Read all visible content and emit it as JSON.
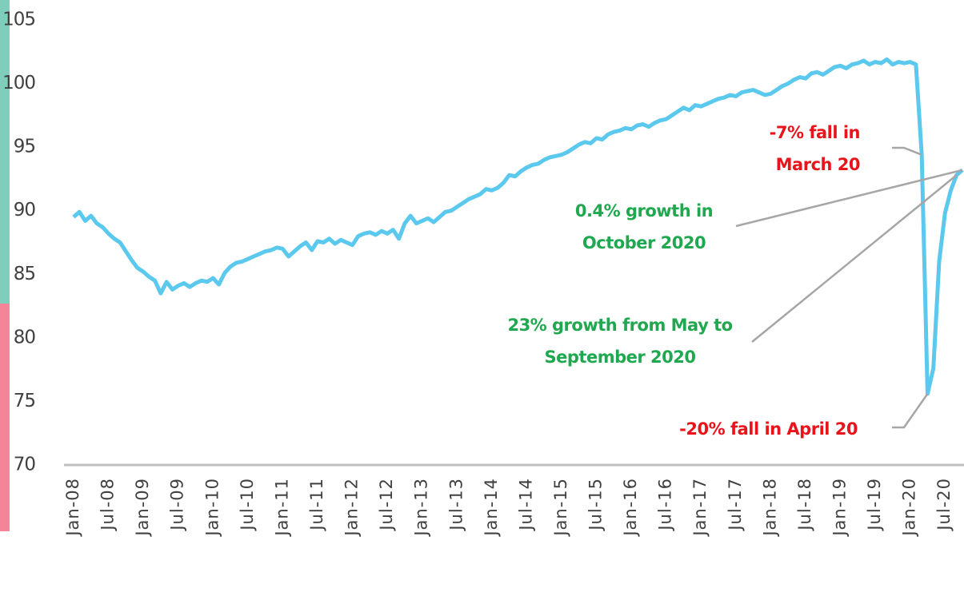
{
  "chart_data": {
    "type": "line",
    "categories": [
      "Jan-08",
      null,
      null,
      null,
      null,
      null,
      "Jul-08",
      null,
      null,
      null,
      null,
      null,
      "Jan-09",
      null,
      null,
      null,
      null,
      null,
      "Jul-09",
      null,
      null,
      null,
      null,
      null,
      "Jan-10",
      null,
      null,
      null,
      null,
      null,
      "Jul-10",
      null,
      null,
      null,
      null,
      null,
      "Jan-11",
      null,
      null,
      null,
      null,
      null,
      "Jul-11",
      null,
      null,
      null,
      null,
      null,
      "Jan-12",
      null,
      null,
      null,
      null,
      null,
      "Jul-12",
      null,
      null,
      null,
      null,
      null,
      "Jan-13",
      null,
      null,
      null,
      null,
      null,
      "Jul-13",
      null,
      null,
      null,
      null,
      null,
      "Jan-14",
      null,
      null,
      null,
      null,
      null,
      "Jul-14",
      null,
      null,
      null,
      null,
      null,
      "Jan-15",
      null,
      null,
      null,
      null,
      null,
      "Jul-15",
      null,
      null,
      null,
      null,
      null,
      "Jan-16",
      null,
      null,
      null,
      null,
      null,
      "Jul-16",
      null,
      null,
      null,
      null,
      null,
      "Jan-17",
      null,
      null,
      null,
      null,
      null,
      "Jul-17",
      null,
      null,
      null,
      null,
      null,
      "Jan-18",
      null,
      null,
      null,
      null,
      null,
      "Jul-18",
      null,
      null,
      null,
      null,
      null,
      "Jan-19",
      null,
      null,
      null,
      null,
      null,
      "Jul-19",
      null,
      null,
      null,
      null,
      null,
      "Jan-20",
      null,
      null,
      null,
      null,
      null,
      "Jul-20",
      null,
      null,
      null
    ],
    "series": [
      {
        "color": "#5bc8ee",
        "values": [
          89.5,
          89.9,
          89.2,
          89.6,
          89.0,
          88.7,
          88.2,
          87.8,
          87.5,
          86.8,
          86.1,
          85.5,
          85.2,
          84.8,
          84.5,
          83.5,
          84.4,
          83.8,
          84.1,
          84.3,
          84.0,
          84.3,
          84.5,
          84.4,
          84.7,
          84.2,
          85.1,
          85.6,
          85.9,
          86.0,
          86.2,
          86.4,
          86.6,
          86.8,
          86.9,
          87.1,
          87.0,
          86.4,
          86.8,
          87.2,
          87.5,
          86.9,
          87.6,
          87.5,
          87.8,
          87.4,
          87.7,
          87.5,
          87.3,
          88.0,
          88.2,
          88.3,
          88.1,
          88.4,
          88.2,
          88.5,
          87.8,
          89.0,
          89.6,
          89.0,
          89.2,
          89.4,
          89.1,
          89.5,
          89.9,
          90.0,
          90.3,
          90.6,
          90.9,
          91.1,
          91.3,
          91.7,
          91.6,
          91.8,
          92.2,
          92.8,
          92.7,
          93.1,
          93.4,
          93.6,
          93.7,
          94.0,
          94.2,
          94.3,
          94.4,
          94.6,
          94.9,
          95.2,
          95.4,
          95.3,
          95.7,
          95.6,
          96.0,
          96.2,
          96.3,
          96.5,
          96.4,
          96.7,
          96.8,
          96.6,
          96.9,
          97.1,
          97.2,
          97.5,
          97.8,
          98.1,
          97.9,
          98.3,
          98.2,
          98.4,
          98.6,
          98.8,
          98.9,
          99.1,
          99.0,
          99.3,
          99.4,
          99.5,
          99.3,
          99.1,
          99.2,
          99.5,
          99.8,
          100.0,
          100.3,
          100.5,
          100.4,
          100.8,
          100.9,
          100.7,
          101.0,
          101.3,
          101.4,
          101.2,
          101.5,
          101.6,
          101.8,
          101.5,
          101.7,
          101.6,
          101.9,
          101.5,
          101.7,
          101.6,
          101.7,
          101.5,
          94.4,
          75.6,
          77.6,
          86.0,
          89.8,
          91.6,
          92.8,
          93.2
        ]
      }
    ],
    "ylim": [
      70,
      105
    ],
    "yticks": [
      70,
      75,
      80,
      85,
      90,
      95,
      100,
      105
    ],
    "grid": false,
    "annotations": [
      {
        "lines": [
          "-7% fall in",
          "March 20"
        ],
        "color": "#e8141c"
      },
      {
        "lines": [
          "0.4% growth in",
          "October 2020"
        ],
        "color": "#1fa84f"
      },
      {
        "lines": [
          "23% growth from May to",
          "September 2020"
        ],
        "color": "#1fa84f"
      },
      {
        "lines": [
          "-20% fall in April 20"
        ],
        "color": "#e8141c"
      }
    ]
  }
}
